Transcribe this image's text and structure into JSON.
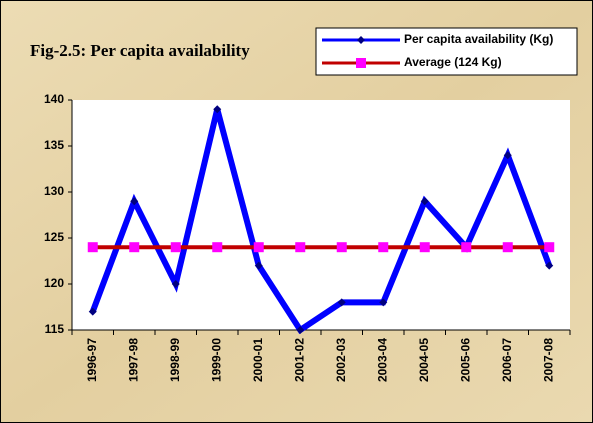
{
  "chart_data": {
    "type": "line",
    "title": "Fig-2.5: Per capita availability",
    "categories": [
      "1996-97",
      "1997-98",
      "1998-99",
      "1999-00",
      "2000-01",
      "2001-02",
      "2002-03",
      "2003-04",
      "2004-05",
      "2005-06",
      "2006-07",
      "2007-08"
    ],
    "series": [
      {
        "name": "Per capita availability (Kg)",
        "color": "#0000ff",
        "marker": "diamond",
        "marker_color": "#000080",
        "values": [
          117,
          129,
          120,
          139,
          122,
          115,
          118,
          118,
          129,
          124,
          134,
          122
        ]
      },
      {
        "name": "Average (124 Kg)",
        "color": "#c00000",
        "marker": "square",
        "marker_color": "#ff00ff",
        "values": [
          124,
          124,
          124,
          124,
          124,
          124,
          124,
          124,
          124,
          124,
          124,
          124
        ]
      }
    ],
    "ylim": [
      115,
      140
    ],
    "yticks": [
      115,
      120,
      125,
      130,
      135,
      140
    ],
    "grid": false,
    "legend": "top-right"
  }
}
